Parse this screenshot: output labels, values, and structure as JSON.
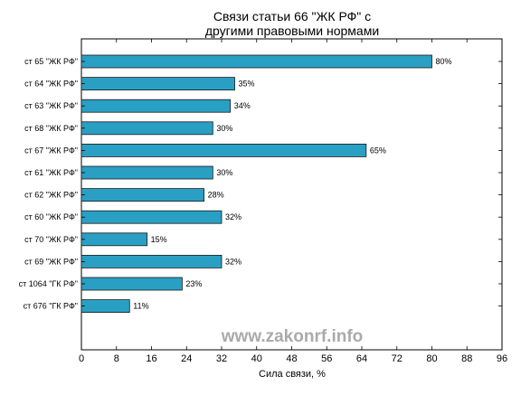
{
  "chart_data": {
    "type": "bar",
    "orientation": "horizontal",
    "title_lines": [
      "Связи статьи 66 \"ЖК РФ\" с",
      "другими правовыми нормами"
    ],
    "xlabel": "Сила связи, %",
    "ylabel": "",
    "xlim": [
      0,
      96
    ],
    "xticks": [
      0,
      8,
      16,
      24,
      32,
      40,
      48,
      56,
      64,
      72,
      80,
      88,
      96
    ],
    "categories": [
      "ст 65 \"ЖК РФ\"",
      "ст 64 \"ЖК РФ\"",
      "ст 63 \"ЖК РФ\"",
      "ст 68 \"ЖК РФ\"",
      "ст 67 \"ЖК РФ\"",
      "ст 61 \"ЖК РФ\"",
      "ст 62 \"ЖК РФ\"",
      "ст 60 \"ЖК РФ\"",
      "ст 70 \"ЖК РФ\"",
      "ст 69 \"ЖК РФ\"",
      "ст 1064 \"ГК РФ\"",
      "ст 676 \"ГК РФ\""
    ],
    "values": [
      80,
      35,
      34,
      30,
      65,
      30,
      28,
      32,
      15,
      32,
      23,
      11
    ],
    "data_labels": [
      "80%",
      "35%",
      "34%",
      "30%",
      "65%",
      "30%",
      "28%",
      "32%",
      "15%",
      "32%",
      "23%",
      "11%"
    ],
    "bar_color": "#2a9fc4",
    "grid": false,
    "legend": "none"
  },
  "watermark": "www.zakonrf.info"
}
